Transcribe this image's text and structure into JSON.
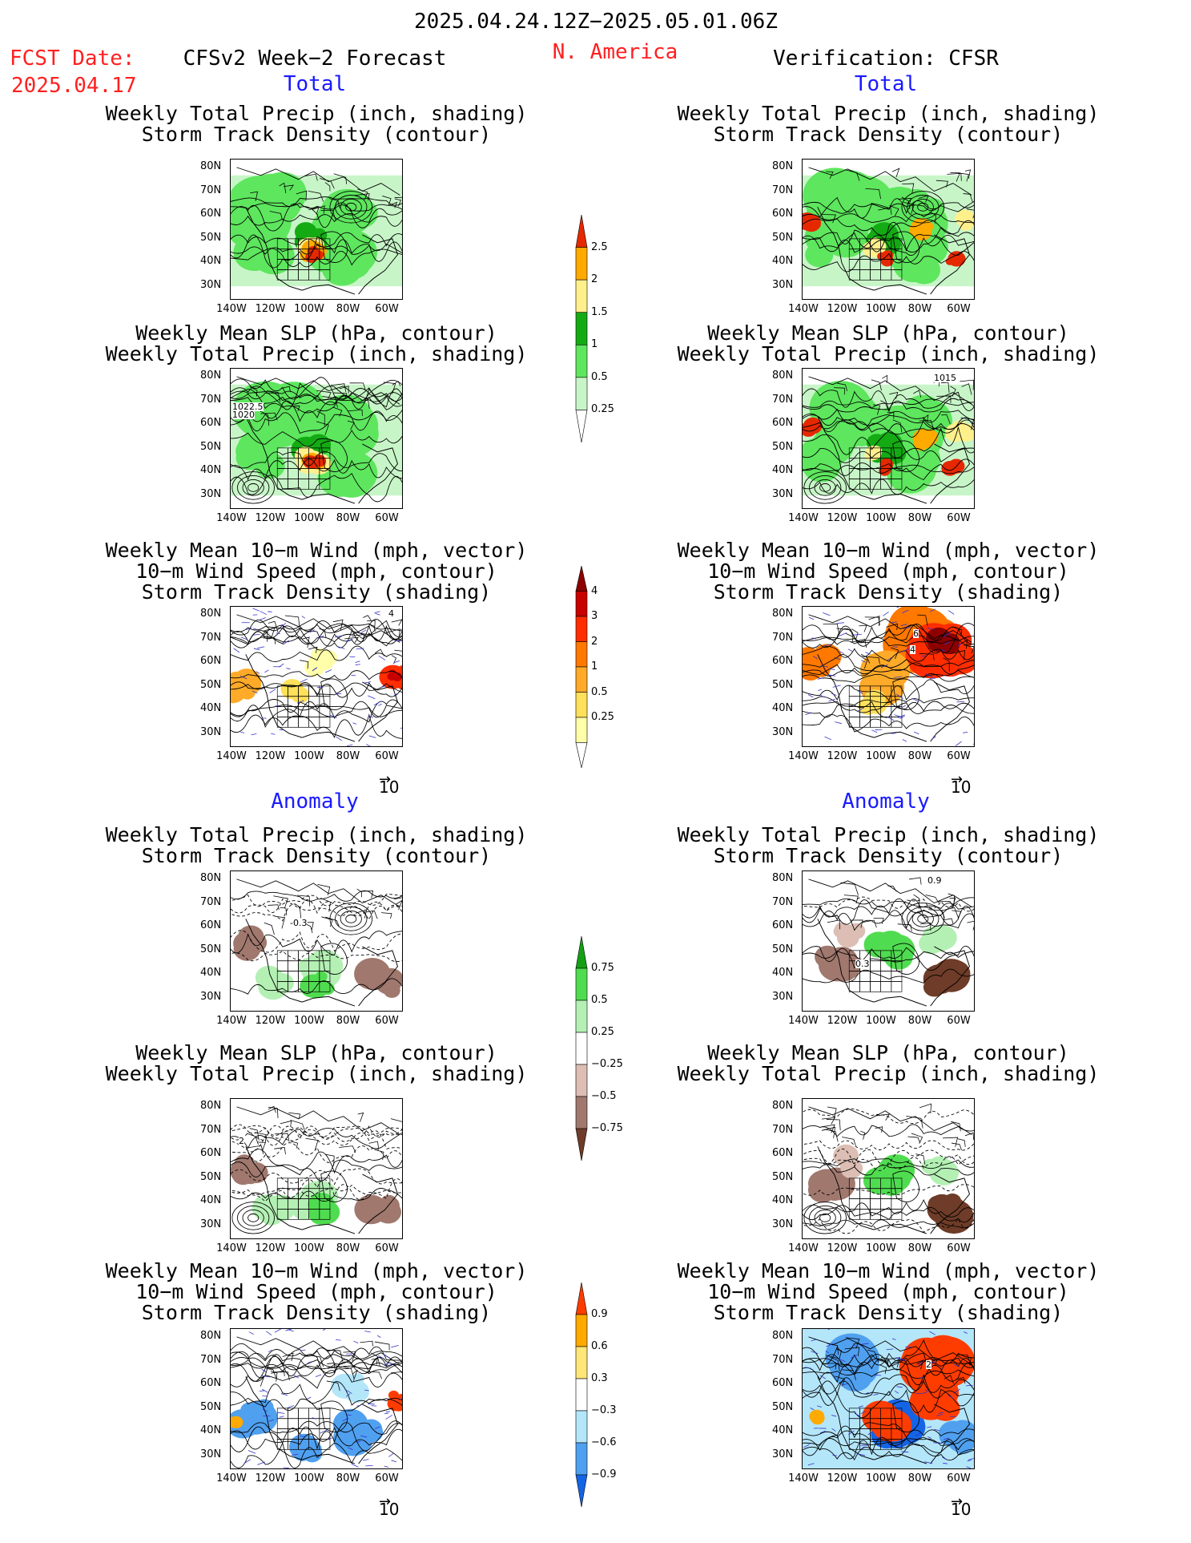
{
  "header": {
    "period": "2025.04.24.12Z−2025.05.01.06Z",
    "region": "N. America",
    "fcst_label": "FCST Date:",
    "fcst_date": "2025.04.17",
    "left_title": "CFSv2 Week−2 Forecast",
    "right_title": "Verification: CFSR"
  },
  "sections": {
    "total": "Total",
    "anomaly": "Anomaly"
  },
  "panel_titles": {
    "precip_storm": [
      "Weekly Total Precip (inch, shading)",
      "Storm Track Density (contour)"
    ],
    "slp_precip": [
      "Weekly Mean SLP (hPa, contour)",
      "Weekly Total Precip (inch, shading)"
    ],
    "wind": [
      "Weekly Mean 10−m Wind (mph, vector)",
      "10−m Wind Speed (mph, contour)",
      "Storm Track Density (shading)"
    ]
  },
  "axes": {
    "lat_ticks": [
      "80N",
      "70N",
      "60N",
      "50N",
      "40N",
      "30N"
    ],
    "lon_ticks": [
      "140W",
      "120W",
      "100W",
      "80W",
      "60W"
    ],
    "vector_ref": "10"
  },
  "colorbars": {
    "precip_total": [
      "2.5",
      "2",
      "1.5",
      "1",
      "0.5",
      "0.25"
    ],
    "storm_total": [
      "4",
      "3",
      "2",
      "1",
      "0.5",
      "0.25"
    ],
    "precip_anom": [
      "0.75",
      "0.5",
      "0.25",
      "−0.25",
      "−0.5",
      "−0.75"
    ],
    "storm_anom": [
      "0.9",
      "0.6",
      "0.3",
      "−0.3",
      "−0.6",
      "−0.9"
    ]
  },
  "contour_labels": {
    "slp_fcst_1": "1022.5",
    "slp_fcst_2": "1020",
    "slp_cfsr": "1015",
    "storm_cfsr_a": "6",
    "storm_cfsr_b": "4",
    "storm_fcst": "4",
    "anom_fcst": "-0.3",
    "anom_cfsr": "0.9",
    "anom_cfsr_b": "0.3",
    "anom_slp_fcst": "2",
    "anom_wind_cfsr": "2"
  },
  "colors": {
    "precip": [
      "#c8f5c8",
      "#5ee65e",
      "#14aa14",
      "#fff08c",
      "#ffaa00",
      "#e62800"
    ],
    "storm": [
      "#ffffaa",
      "#ffe05a",
      "#ffaa28",
      "#ff7800",
      "#ff2d00",
      "#c80000",
      "#8c0000"
    ],
    "precip_anom": [
      "#6e3c28",
      "#a0786e",
      "#dcbeb4",
      "#ffffff",
      "#b4f0b4",
      "#50dc50",
      "#14a014"
    ],
    "storm_anom": [
      "#1464e6",
      "#50a0f0",
      "#b4e6fa",
      "#ffffff",
      "#ffe678",
      "#ffaa00",
      "#ff3c00"
    ]
  }
}
